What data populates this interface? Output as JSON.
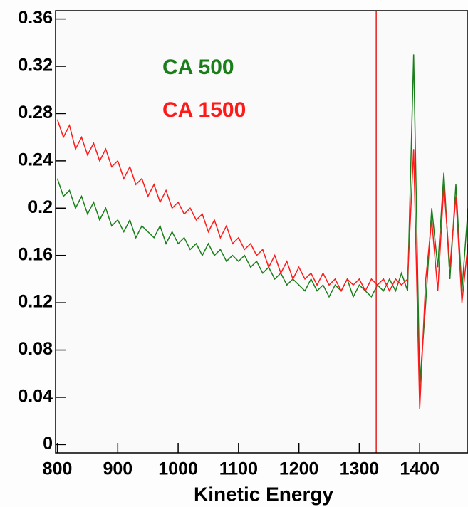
{
  "chart_data": {
    "type": "line",
    "xlabel": "Kinetic Energy",
    "x": [
      800,
      810,
      820,
      830,
      840,
      850,
      860,
      870,
      880,
      890,
      900,
      910,
      920,
      930,
      940,
      950,
      960,
      970,
      980,
      990,
      1000,
      1010,
      1020,
      1030,
      1040,
      1050,
      1060,
      1070,
      1080,
      1090,
      1100,
      1110,
      1120,
      1130,
      1140,
      1150,
      1160,
      1170,
      1180,
      1190,
      1200,
      1210,
      1220,
      1230,
      1240,
      1250,
      1260,
      1270,
      1280,
      1290,
      1300,
      1310,
      1320,
      1330,
      1340,
      1350,
      1360,
      1370,
      1380,
      1390,
      1400,
      1410,
      1420,
      1430,
      1440,
      1450,
      1460,
      1470,
      1480
    ],
    "series": [
      {
        "name": "CA 500",
        "color": "#1a7f1a",
        "values": [
          0.225,
          0.21,
          0.215,
          0.2,
          0.21,
          0.195,
          0.205,
          0.19,
          0.2,
          0.185,
          0.19,
          0.18,
          0.19,
          0.175,
          0.185,
          0.18,
          0.175,
          0.185,
          0.17,
          0.18,
          0.17,
          0.175,
          0.165,
          0.17,
          0.16,
          0.17,
          0.16,
          0.165,
          0.155,
          0.16,
          0.155,
          0.16,
          0.15,
          0.155,
          0.145,
          0.15,
          0.14,
          0.145,
          0.135,
          0.14,
          0.135,
          0.13,
          0.14,
          0.13,
          0.135,
          0.125,
          0.135,
          0.13,
          0.14,
          0.125,
          0.135,
          0.13,
          0.125,
          0.135,
          0.13,
          0.14,
          0.13,
          0.145,
          0.13,
          0.33,
          0.05,
          0.12,
          0.2,
          0.15,
          0.23,
          0.14,
          0.22,
          0.13,
          0.2
        ]
      },
      {
        "name": "CA 1500",
        "color": "#ff1a1a",
        "values": [
          0.275,
          0.26,
          0.27,
          0.25,
          0.26,
          0.245,
          0.255,
          0.24,
          0.25,
          0.235,
          0.24,
          0.225,
          0.235,
          0.22,
          0.225,
          0.21,
          0.22,
          0.205,
          0.215,
          0.2,
          0.205,
          0.195,
          0.2,
          0.19,
          0.195,
          0.18,
          0.19,
          0.175,
          0.185,
          0.17,
          0.175,
          0.165,
          0.17,
          0.16,
          0.165,
          0.15,
          0.16,
          0.145,
          0.155,
          0.14,
          0.15,
          0.14,
          0.145,
          0.135,
          0.145,
          0.135,
          0.14,
          0.13,
          0.14,
          0.135,
          0.14,
          0.13,
          0.14,
          0.135,
          0.14,
          0.13,
          0.14,
          0.135,
          0.14,
          0.25,
          0.03,
          0.14,
          0.19,
          0.13,
          0.22,
          0.15,
          0.21,
          0.12,
          0.17
        ]
      }
    ],
    "vline": 1328,
    "vline_color": "#e52020",
    "xlim": [
      797,
      1480
    ],
    "ylim": [
      -0.007,
      0.367
    ],
    "xticks": [
      800,
      900,
      1000,
      1100,
      1200,
      1300,
      1400
    ],
    "yticks": [
      0,
      0.04,
      0.08,
      0.12,
      0.16,
      0.2,
      0.24,
      0.28,
      0.32,
      0.36
    ],
    "legend": "upper left"
  }
}
